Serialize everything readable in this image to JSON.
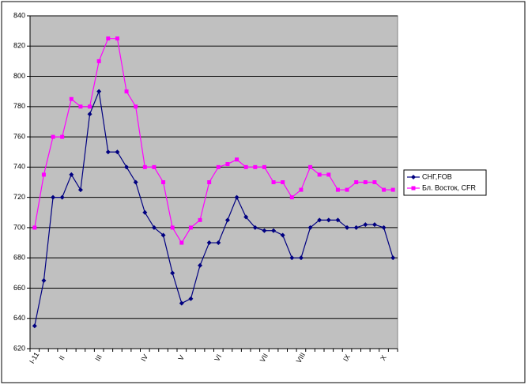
{
  "chart_data": {
    "type": "line",
    "categories": [
      "I-11",
      null,
      null,
      "II",
      null,
      null,
      null,
      "III",
      null,
      null,
      null,
      null,
      "IV",
      null,
      null,
      null,
      "V",
      null,
      null,
      null,
      "VI",
      null,
      null,
      null,
      null,
      "VII",
      null,
      null,
      null,
      "VIII",
      null,
      null,
      null,
      null,
      "IX",
      null,
      null,
      null,
      "X",
      null
    ],
    "series": [
      {
        "name": "СНГ,FOB",
        "color": "#000080",
        "marker": "diamond",
        "values": [
          635,
          665,
          720,
          720,
          735,
          725,
          775,
          790,
          750,
          750,
          740,
          730,
          710,
          700,
          695,
          670,
          650,
          653,
          675,
          690,
          690,
          705,
          720,
          707,
          700,
          698,
          698,
          695,
          680,
          680,
          700,
          705,
          705,
          705,
          700,
          700,
          702,
          702,
          700,
          680
        ]
      },
      {
        "name": "Бл. Восток, CFR",
        "color": "#ff00ff",
        "marker": "square",
        "values": [
          700,
          735,
          760,
          760,
          785,
          780,
          780,
          810,
          825,
          825,
          790,
          780,
          740,
          740,
          730,
          700,
          690,
          700,
          705,
          730,
          740,
          742,
          745,
          740,
          740,
          740,
          730,
          730,
          720,
          725,
          740,
          735,
          735,
          725,
          725,
          730,
          730,
          730,
          725,
          725
        ]
      }
    ],
    "ylim": [
      620,
      840
    ],
    "yticks": [
      620,
      640,
      660,
      680,
      700,
      720,
      740,
      760,
      780,
      800,
      820,
      840
    ],
    "grid": true,
    "legend": "right",
    "plot_background": "#c0c0c0"
  }
}
